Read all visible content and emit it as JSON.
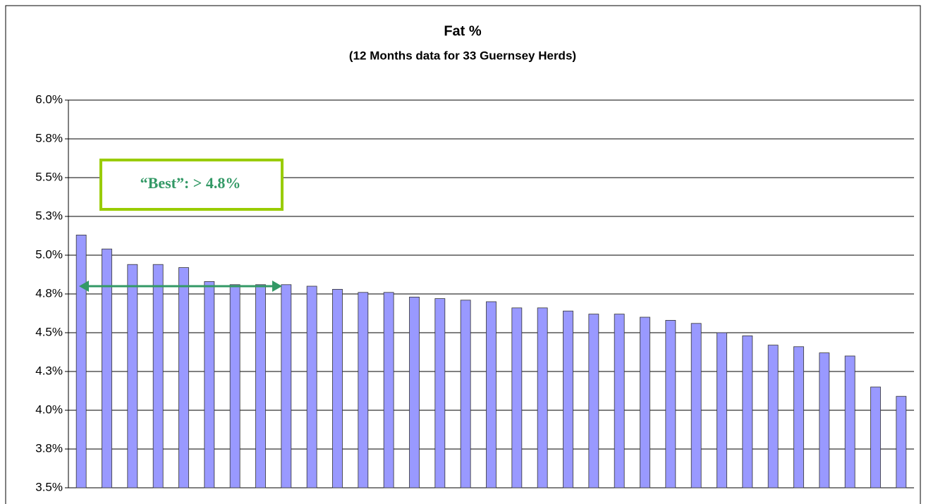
{
  "chart_data": {
    "type": "bar",
    "title": "Fat %",
    "subtitle": "(12 Months data for 33 Guernsey Herds)",
    "values": [
      5.13,
      5.04,
      4.94,
      4.94,
      4.92,
      4.83,
      4.81,
      4.81,
      4.81,
      4.8,
      4.78,
      4.76,
      4.76,
      4.73,
      4.72,
      4.71,
      4.7,
      4.66,
      4.66,
      4.64,
      4.62,
      4.62,
      4.6,
      4.58,
      4.56,
      4.5,
      4.48,
      4.42,
      4.41,
      4.37,
      4.35,
      4.15,
      4.09
    ],
    "color": "#9999ff",
    "ylim": [
      3.5,
      6.0
    ],
    "yticks": [
      {
        "value": 3.5,
        "label": "3.5%"
      },
      {
        "value": 3.75,
        "label": "3.8%"
      },
      {
        "value": 4.0,
        "label": "4.0%"
      },
      {
        "value": 4.25,
        "label": "4.3%"
      },
      {
        "value": 4.5,
        "label": "4.5%"
      },
      {
        "value": 4.75,
        "label": "4.8%"
      },
      {
        "value": 5.0,
        "label": "5.0%"
      },
      {
        "value": 5.25,
        "label": "5.3%"
      },
      {
        "value": 5.5,
        "label": "5.5%"
      },
      {
        "value": 5.75,
        "label": "5.8%"
      },
      {
        "value": 6.0,
        "label": "6.0%"
      }
    ],
    "grid": true,
    "annotations": [
      "“Best”:  > 4.8%"
    ]
  }
}
